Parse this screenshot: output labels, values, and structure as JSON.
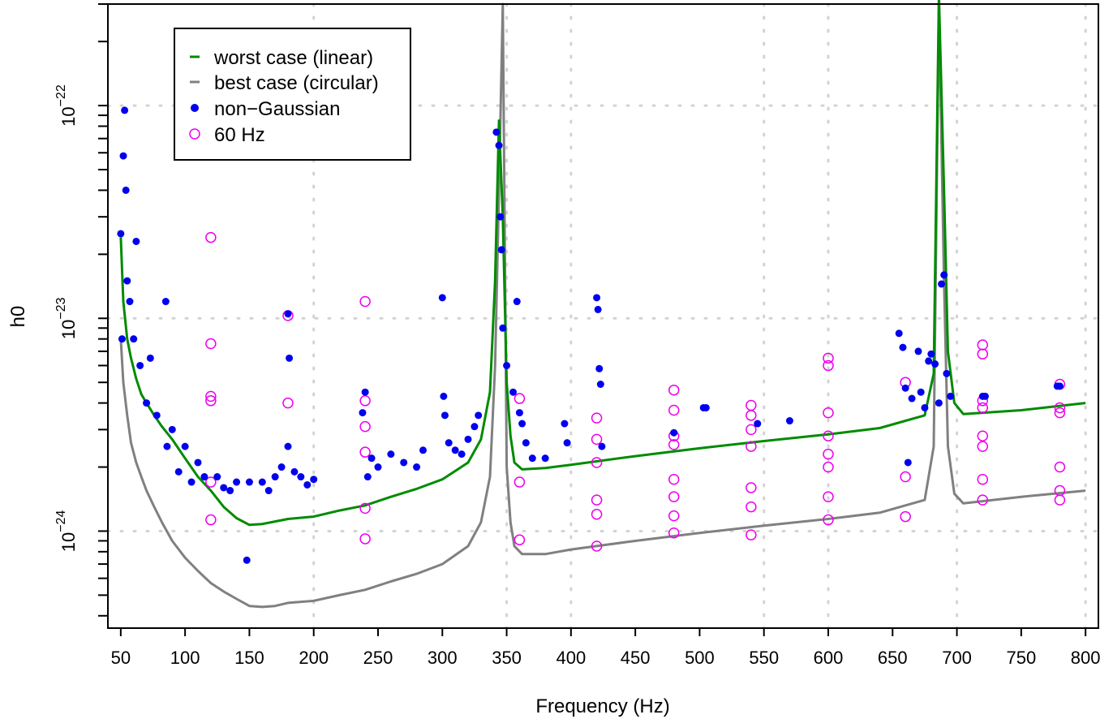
{
  "chart_data": {
    "type": "line",
    "xlabel": "Frequency (Hz)",
    "ylabel": "h0",
    "xlim": [
      40,
      810
    ],
    "ylim": [
      3.5e-25,
      3e-22
    ],
    "y_scale": "log",
    "grid": true,
    "legend_position": "top-left",
    "x_ticks": [
      50,
      100,
      150,
      200,
      250,
      300,
      350,
      400,
      450,
      500,
      550,
      600,
      650,
      700,
      750,
      800
    ],
    "x_tick_labels": [
      "50",
      "100",
      "150",
      "200",
      "250",
      "300",
      "350",
      "400",
      "450",
      "500",
      "550",
      "600",
      "650",
      "700",
      "750",
      "800"
    ],
    "y_ticks": [
      1e-24,
      1e-23,
      1e-22
    ],
    "y_tick_labels": [
      {
        "base": "10",
        "exp": "−24"
      },
      {
        "base": "10",
        "exp": "−23"
      },
      {
        "base": "10",
        "exp": "−22"
      }
    ],
    "series": [
      {
        "name": "worst case (linear)",
        "kind": "line",
        "color": "#008b00",
        "points": [
          [
            50,
            2.4e-23
          ],
          [
            52,
            1.2e-23
          ],
          [
            55,
            8e-24
          ],
          [
            58,
            6.5e-24
          ],
          [
            62,
            5.2e-24
          ],
          [
            66,
            4.4e-24
          ],
          [
            70,
            4e-24
          ],
          [
            76,
            3.5e-24
          ],
          [
            82,
            3.1e-24
          ],
          [
            90,
            2.7e-24
          ],
          [
            100,
            2.2e-24
          ],
          [
            110,
            1.8e-24
          ],
          [
            120,
            1.55e-24
          ],
          [
            130,
            1.3e-24
          ],
          [
            140,
            1.15e-24
          ],
          [
            150,
            1.07e-24
          ],
          [
            160,
            1.08e-24
          ],
          [
            170,
            1.11e-24
          ],
          [
            180,
            1.14e-24
          ],
          [
            200,
            1.17e-24
          ],
          [
            220,
            1.25e-24
          ],
          [
            240,
            1.32e-24
          ],
          [
            260,
            1.45e-24
          ],
          [
            280,
            1.58e-24
          ],
          [
            300,
            1.75e-24
          ],
          [
            320,
            2.1e-24
          ],
          [
            330,
            2.7e-24
          ],
          [
            337,
            4.5e-24
          ],
          [
            341,
            1.5e-23
          ],
          [
            344,
            8.5e-23
          ],
          [
            347,
            3e-23
          ],
          [
            350,
            5e-24
          ],
          [
            353,
            2.8e-24
          ],
          [
            356,
            2.1e-24
          ],
          [
            362,
            1.95e-24
          ],
          [
            380,
            1.98e-24
          ],
          [
            400,
            2.05e-24
          ],
          [
            450,
            2.25e-24
          ],
          [
            500,
            2.45e-24
          ],
          [
            550,
            2.65e-24
          ],
          [
            600,
            2.85e-24
          ],
          [
            640,
            3.05e-24
          ],
          [
            675,
            3.5e-24
          ],
          [
            682,
            5.5e-24
          ],
          [
            686,
            3.3e-22
          ],
          [
            690,
            4e-23
          ],
          [
            693,
            7e-24
          ],
          [
            698,
            4e-24
          ],
          [
            705,
            3.55e-24
          ],
          [
            750,
            3.7e-24
          ],
          [
            800,
            4e-24
          ]
        ]
      },
      {
        "name": "best case (circular)",
        "kind": "line",
        "color": "#808080",
        "points": [
          [
            50,
            8e-24
          ],
          [
            52,
            5e-24
          ],
          [
            55,
            3.5e-24
          ],
          [
            58,
            2.6e-24
          ],
          [
            62,
            2.1e-24
          ],
          [
            66,
            1.8e-24
          ],
          [
            70,
            1.55e-24
          ],
          [
            76,
            1.3e-24
          ],
          [
            82,
            1.1e-24
          ],
          [
            90,
            9e-25
          ],
          [
            100,
            7.5e-25
          ],
          [
            110,
            6.5e-25
          ],
          [
            120,
            5.7e-25
          ],
          [
            130,
            5.2e-25
          ],
          [
            140,
            4.8e-25
          ],
          [
            150,
            4.45e-25
          ],
          [
            160,
            4.4e-25
          ],
          [
            170,
            4.45e-25
          ],
          [
            180,
            4.6e-25
          ],
          [
            200,
            4.7e-25
          ],
          [
            220,
            5e-25
          ],
          [
            240,
            5.3e-25
          ],
          [
            260,
            5.8e-25
          ],
          [
            280,
            6.3e-25
          ],
          [
            300,
            7e-25
          ],
          [
            320,
            8.5e-25
          ],
          [
            330,
            1.1e-24
          ],
          [
            337,
            1.8e-24
          ],
          [
            341,
            6e-24
          ],
          [
            344,
            4e-23
          ],
          [
            347,
            3e-22
          ],
          [
            350,
            2e-24
          ],
          [
            353,
            1.1e-24
          ],
          [
            356,
            8.5e-25
          ],
          [
            362,
            7.8e-25
          ],
          [
            380,
            7.8e-25
          ],
          [
            400,
            8.2e-25
          ],
          [
            450,
            9e-25
          ],
          [
            500,
            9.8e-25
          ],
          [
            550,
            1.06e-24
          ],
          [
            600,
            1.14e-24
          ],
          [
            640,
            1.22e-24
          ],
          [
            675,
            1.4e-24
          ],
          [
            682,
            2.5e-24
          ],
          [
            686,
            3e-22
          ],
          [
            690,
            1.5e-23
          ],
          [
            693,
            2.5e-24
          ],
          [
            698,
            1.5e-24
          ],
          [
            705,
            1.35e-24
          ],
          [
            750,
            1.45e-24
          ],
          [
            800,
            1.55e-24
          ]
        ]
      },
      {
        "name": "non−Gaussian",
        "kind": "points",
        "color": "#0000ee",
        "points": [
          [
            50,
            2.5e-23
          ],
          [
            51,
            8e-24
          ],
          [
            52,
            5.8e-23
          ],
          [
            53,
            9.5e-23
          ],
          [
            54,
            4e-23
          ],
          [
            55,
            1.5e-23
          ],
          [
            57,
            1.2e-23
          ],
          [
            60,
            8e-24
          ],
          [
            62,
            2.3e-23
          ],
          [
            65,
            6e-24
          ],
          [
            70,
            4e-24
          ],
          [
            73,
            6.5e-24
          ],
          [
            78,
            3.5e-24
          ],
          [
            85,
            1.2e-23
          ],
          [
            86,
            2.5e-24
          ],
          [
            90,
            3e-24
          ],
          [
            95,
            1.9e-24
          ],
          [
            100,
            2.5e-24
          ],
          [
            105,
            1.7e-24
          ],
          [
            110,
            2.1e-24
          ],
          [
            115,
            1.8e-24
          ],
          [
            125,
            1.8e-24
          ],
          [
            130,
            1.6e-24
          ],
          [
            135,
            1.55e-24
          ],
          [
            140,
            1.7e-24
          ],
          [
            148,
            7.3e-25
          ],
          [
            150,
            1.7e-24
          ],
          [
            160,
            1.7e-24
          ],
          [
            165,
            1.55e-24
          ],
          [
            170,
            1.8e-24
          ],
          [
            175,
            2e-24
          ],
          [
            180,
            1.05e-23
          ],
          [
            181,
            6.5e-24
          ],
          [
            180,
            2.5e-24
          ],
          [
            185,
            1.9e-24
          ],
          [
            190,
            1.8e-24
          ],
          [
            195,
            1.65e-24
          ],
          [
            200,
            1.75e-24
          ],
          [
            240,
            4.5e-24
          ],
          [
            238,
            3.6e-24
          ],
          [
            242,
            1.8e-24
          ],
          [
            245,
            2.2e-24
          ],
          [
            250,
            2e-24
          ],
          [
            260,
            2.3e-24
          ],
          [
            270,
            2.1e-24
          ],
          [
            280,
            2e-24
          ],
          [
            285,
            2.4e-24
          ],
          [
            300,
            1.25e-23
          ],
          [
            301,
            4.3e-24
          ],
          [
            302,
            3.5e-24
          ],
          [
            305,
            2.6e-24
          ],
          [
            310,
            2.4e-24
          ],
          [
            315,
            2.3e-24
          ],
          [
            320,
            2.7e-24
          ],
          [
            325,
            3.1e-24
          ],
          [
            328,
            3.5e-24
          ],
          [
            342,
            7.5e-23
          ],
          [
            344,
            6.5e-23
          ],
          [
            345,
            3e-23
          ],
          [
            346,
            2.1e-23
          ],
          [
            347,
            9e-24
          ],
          [
            350,
            6e-24
          ],
          [
            355,
            4.5e-24
          ],
          [
            358,
            1.2e-23
          ],
          [
            360,
            3.6e-24
          ],
          [
            362,
            3.2e-24
          ],
          [
            365,
            2.6e-24
          ],
          [
            370,
            2.2e-24
          ],
          [
            380,
            2.2e-24
          ],
          [
            395,
            3.2e-24
          ],
          [
            397,
            2.6e-24
          ],
          [
            420,
            1.25e-23
          ],
          [
            421,
            1.1e-23
          ],
          [
            422,
            5.8e-24
          ],
          [
            423,
            4.9e-24
          ],
          [
            424,
            2.5e-24
          ],
          [
            480,
            2.9e-24
          ],
          [
            503,
            3.8e-24
          ],
          [
            505,
            3.8e-24
          ],
          [
            545,
            3.2e-24
          ],
          [
            570,
            3.3e-24
          ],
          [
            655,
            8.5e-24
          ],
          [
            658,
            7.3e-24
          ],
          [
            660,
            4.7e-24
          ],
          [
            662,
            2.1e-24
          ],
          [
            665,
            4.2e-24
          ],
          [
            670,
            7e-24
          ],
          [
            672,
            4.5e-24
          ],
          [
            675,
            3.8e-24
          ],
          [
            678,
            6.3e-24
          ],
          [
            680,
            6.8e-24
          ],
          [
            683,
            6.1e-24
          ],
          [
            686,
            4e-24
          ],
          [
            688,
            1.45e-23
          ],
          [
            690,
            1.6e-23
          ],
          [
            692,
            5.5e-24
          ],
          [
            695,
            4.3e-24
          ],
          [
            720,
            4.3e-24
          ],
          [
            722,
            4.3e-24
          ],
          [
            778,
            4.8e-24
          ],
          [
            780,
            4.8e-24
          ]
        ]
      },
      {
        "name": "60 Hz",
        "kind": "points",
        "color": "#ee00ee",
        "points": [
          [
            120,
            2.4e-23
          ],
          [
            120,
            7.6e-24
          ],
          [
            120,
            4.3e-24
          ],
          [
            120,
            4.1e-24
          ],
          [
            120,
            1.7e-24
          ],
          [
            120,
            1.13e-24
          ],
          [
            180,
            1.03e-23
          ],
          [
            180,
            4e-24
          ],
          [
            240,
            1.2e-23
          ],
          [
            240,
            4.1e-24
          ],
          [
            240,
            3.1e-24
          ],
          [
            240,
            2.35e-24
          ],
          [
            240,
            1.28e-24
          ],
          [
            240,
            9.2e-25
          ],
          [
            360,
            4.2e-24
          ],
          [
            360,
            1.7e-24
          ],
          [
            360,
            9.1e-25
          ],
          [
            420,
            3.4e-24
          ],
          [
            420,
            2.7e-24
          ],
          [
            420,
            2.1e-24
          ],
          [
            420,
            1.4e-24
          ],
          [
            420,
            1.2e-24
          ],
          [
            420,
            8.5e-25
          ],
          [
            480,
            4.6e-24
          ],
          [
            480,
            3.7e-24
          ],
          [
            480,
            2.8e-24
          ],
          [
            480,
            2.55e-24
          ],
          [
            480,
            1.75e-24
          ],
          [
            480,
            1.45e-24
          ],
          [
            480,
            1.18e-24
          ],
          [
            480,
            9.8e-25
          ],
          [
            540,
            3.9e-24
          ],
          [
            540,
            3.5e-24
          ],
          [
            540,
            3e-24
          ],
          [
            540,
            2.5e-24
          ],
          [
            540,
            1.6e-24
          ],
          [
            540,
            1.3e-24
          ],
          [
            540,
            9.6e-25
          ],
          [
            600,
            6.5e-24
          ],
          [
            600,
            6e-24
          ],
          [
            600,
            3.6e-24
          ],
          [
            600,
            2.8e-24
          ],
          [
            600,
            2.3e-24
          ],
          [
            600,
            2e-24
          ],
          [
            600,
            1.45e-24
          ],
          [
            600,
            1.13e-24
          ],
          [
            660,
            5e-24
          ],
          [
            660,
            1.8e-24
          ],
          [
            660,
            1.17e-24
          ],
          [
            720,
            7.5e-24
          ],
          [
            720,
            6.8e-24
          ],
          [
            720,
            4.1e-24
          ],
          [
            720,
            3.8e-24
          ],
          [
            720,
            2.8e-24
          ],
          [
            720,
            2.5e-24
          ],
          [
            720,
            1.75e-24
          ],
          [
            720,
            1.4e-24
          ],
          [
            780,
            4.9e-24
          ],
          [
            780,
            3.8e-24
          ],
          [
            780,
            3.6e-24
          ],
          [
            780,
            2e-24
          ],
          [
            780,
            1.55e-24
          ],
          [
            780,
            1.4e-24
          ]
        ]
      }
    ]
  }
}
